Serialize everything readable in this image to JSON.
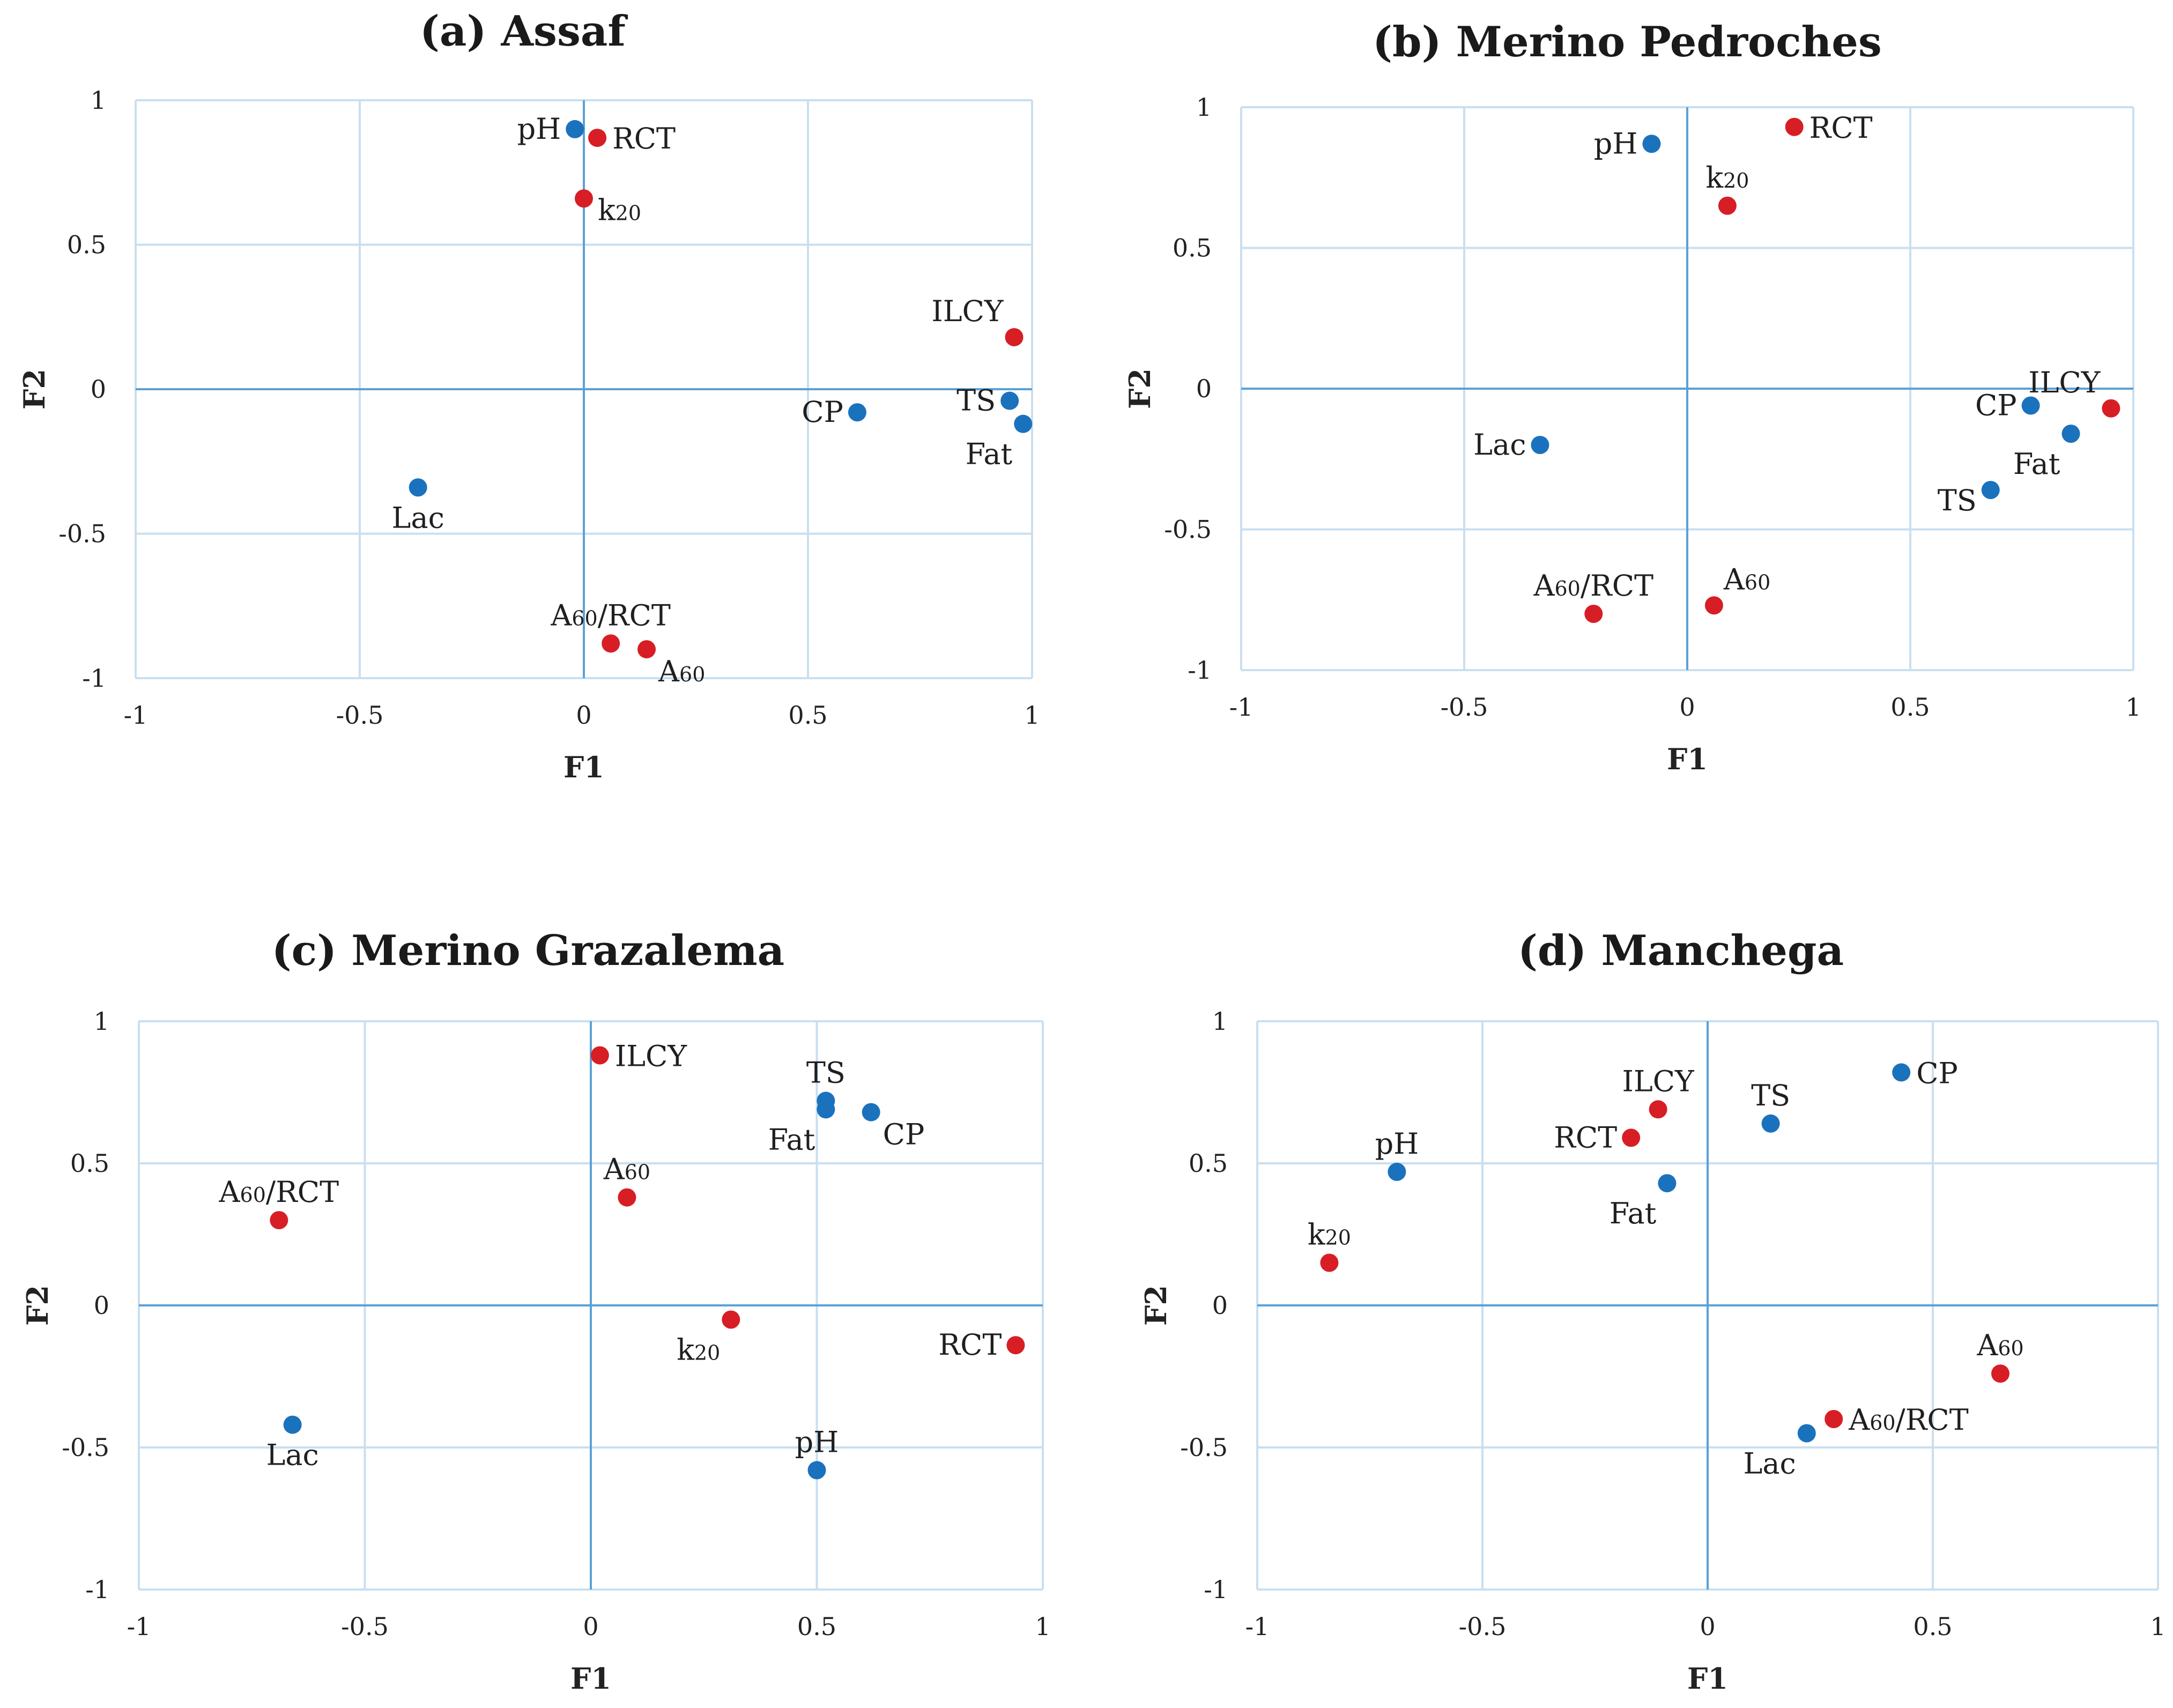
{
  "colors": {
    "fertility": "#1a72bd",
    "coagulation": "#d81e25",
    "grid": "#c9dff0",
    "axis": "#5aa1d6"
  },
  "chart_data": [
    {
      "type": "scatter",
      "title": "(a) Assaf",
      "xlabel": "F1",
      "ylabel": "F2",
      "xlim": [
        -1,
        1
      ],
      "ylim": [
        -1,
        1
      ],
      "xticks": [
        "-1",
        "-0.5",
        "0",
        "0.5",
        "1"
      ],
      "yticks": [
        "1",
        "0.5",
        "0",
        "-0.5",
        "-1"
      ],
      "points": [
        {
          "label": "pH",
          "sub": "",
          "x": -0.02,
          "y": 0.9,
          "group": "blue",
          "anchor": "left"
        },
        {
          "label": "RCT",
          "sub": "",
          "x": 0.03,
          "y": 0.87,
          "group": "red",
          "anchor": "right"
        },
        {
          "label": "k",
          "sub": "20",
          "x": 0.0,
          "y": 0.66,
          "group": "red",
          "anchor": "right-low"
        },
        {
          "label": "ILCY",
          "sub": "",
          "x": 0.96,
          "y": 0.18,
          "group": "red",
          "anchor": "above-left"
        },
        {
          "label": "TS",
          "sub": "",
          "x": 0.95,
          "y": -0.04,
          "group": "blue",
          "anchor": "left"
        },
        {
          "label": "CP",
          "sub": "",
          "x": 0.61,
          "y": -0.08,
          "group": "blue",
          "anchor": "left"
        },
        {
          "label": "Fat",
          "sub": "",
          "x": 0.98,
          "y": -0.12,
          "group": "blue",
          "anchor": "below-left"
        },
        {
          "label": "Lac",
          "sub": "",
          "x": -0.37,
          "y": -0.34,
          "group": "blue",
          "anchor": "below"
        },
        {
          "label": "A",
          "sub": "60",
          "suffix": "/RCT",
          "x": 0.06,
          "y": -0.88,
          "group": "red",
          "anchor": "above"
        },
        {
          "label": "A",
          "sub": "60",
          "x": 0.14,
          "y": -0.9,
          "group": "red",
          "anchor": "below-right"
        }
      ]
    },
    {
      "type": "scatter",
      "title": "(b) Merino Pedroches",
      "xlabel": "F1",
      "ylabel": "F2",
      "xlim": [
        -1,
        1
      ],
      "ylim": [
        -1,
        1
      ],
      "xticks": [
        "-1",
        "-0.5",
        "0",
        "0.5",
        "1"
      ],
      "yticks": [
        "1",
        "0.5",
        "0",
        "-0.5",
        "-1"
      ],
      "points": [
        {
          "label": "RCT",
          "sub": "",
          "x": 0.24,
          "y": 0.93,
          "group": "red",
          "anchor": "right"
        },
        {
          "label": "pH",
          "sub": "",
          "x": -0.08,
          "y": 0.87,
          "group": "blue",
          "anchor": "left"
        },
        {
          "label": "k",
          "sub": "20",
          "x": 0.09,
          "y": 0.65,
          "group": "red",
          "anchor": "above"
        },
        {
          "label": "ILCY",
          "sub": "",
          "x": 0.95,
          "y": -0.07,
          "group": "red",
          "anchor": "above-left"
        },
        {
          "label": "CP",
          "sub": "",
          "x": 0.77,
          "y": -0.06,
          "group": "blue",
          "anchor": "left"
        },
        {
          "label": "Fat",
          "sub": "",
          "x": 0.86,
          "y": -0.16,
          "group": "blue",
          "anchor": "below-left"
        },
        {
          "label": "TS",
          "sub": "",
          "x": 0.68,
          "y": -0.36,
          "group": "blue",
          "anchor": "left-low"
        },
        {
          "label": "Lac",
          "sub": "",
          "x": -0.33,
          "y": -0.2,
          "group": "blue",
          "anchor": "left"
        },
        {
          "label": "A",
          "sub": "60",
          "suffix": "/RCT",
          "x": -0.21,
          "y": -0.8,
          "group": "red",
          "anchor": "above"
        },
        {
          "label": "A",
          "sub": "60",
          "x": 0.06,
          "y": -0.77,
          "group": "red",
          "anchor": "above-right"
        }
      ]
    },
    {
      "type": "scatter",
      "title": "(c) Merino Grazalema",
      "xlabel": "F1",
      "ylabel": "F2",
      "xlim": [
        -1,
        1
      ],
      "ylim": [
        -1,
        1
      ],
      "xticks": [
        "-1",
        "-0.5",
        "0",
        "0.5",
        "1"
      ],
      "yticks": [
        "1",
        "0.5",
        "0",
        "-0.5",
        "-1"
      ],
      "points": [
        {
          "label": "ILCY",
          "sub": "",
          "x": 0.02,
          "y": 0.88,
          "group": "red",
          "anchor": "right"
        },
        {
          "label": "TS",
          "sub": "",
          "x": 0.52,
          "y": 0.72,
          "group": "blue",
          "anchor": "above"
        },
        {
          "label": "Fat",
          "sub": "",
          "x": 0.52,
          "y": 0.69,
          "group": "blue",
          "anchor": "below-left"
        },
        {
          "label": "CP",
          "sub": "",
          "x": 0.62,
          "y": 0.68,
          "group": "blue",
          "anchor": "below-right"
        },
        {
          "label": "A",
          "sub": "60",
          "x": 0.08,
          "y": 0.38,
          "group": "red",
          "anchor": "above"
        },
        {
          "label": "A",
          "sub": "60",
          "suffix": "/RCT",
          "x": -0.69,
          "y": 0.3,
          "group": "red",
          "anchor": "above"
        },
        {
          "label": "k",
          "sub": "20",
          "x": 0.31,
          "y": -0.05,
          "group": "red",
          "anchor": "below-left"
        },
        {
          "label": "RCT",
          "sub": "",
          "x": 0.94,
          "y": -0.14,
          "group": "red",
          "anchor": "left"
        },
        {
          "label": "Lac",
          "sub": "",
          "x": -0.66,
          "y": -0.42,
          "group": "blue",
          "anchor": "below"
        },
        {
          "label": "pH",
          "sub": "",
          "x": 0.5,
          "y": -0.58,
          "group": "blue",
          "anchor": "above"
        }
      ]
    },
    {
      "type": "scatter",
      "title": "(d) Manchega",
      "xlabel": "F1",
      "ylabel": "F2",
      "xlim": [
        -1,
        1
      ],
      "ylim": [
        -1,
        1
      ],
      "xticks": [
        "-1",
        "-0.5",
        "0",
        "0.5",
        "1"
      ],
      "yticks": [
        "1",
        "0.5",
        "0",
        "-0.5",
        "-1"
      ],
      "points": [
        {
          "label": "CP",
          "sub": "",
          "x": 0.43,
          "y": 0.82,
          "group": "blue",
          "anchor": "right"
        },
        {
          "label": "ILCY",
          "sub": "",
          "x": -0.11,
          "y": 0.69,
          "group": "red",
          "anchor": "above"
        },
        {
          "label": "TS",
          "sub": "",
          "x": 0.14,
          "y": 0.64,
          "group": "blue",
          "anchor": "above"
        },
        {
          "label": "RCT",
          "sub": "",
          "x": -0.17,
          "y": 0.59,
          "group": "red",
          "anchor": "left"
        },
        {
          "label": "pH",
          "sub": "",
          "x": -0.69,
          "y": 0.47,
          "group": "blue",
          "anchor": "above"
        },
        {
          "label": "Fat",
          "sub": "",
          "x": -0.09,
          "y": 0.43,
          "group": "blue",
          "anchor": "below-left"
        },
        {
          "label": "k",
          "sub": "20",
          "x": -0.84,
          "y": 0.15,
          "group": "red",
          "anchor": "above"
        },
        {
          "label": "A",
          "sub": "60",
          "x": 0.65,
          "y": -0.24,
          "group": "red",
          "anchor": "above"
        },
        {
          "label": "A",
          "sub": "60",
          "suffix": "/RCT",
          "x": 0.28,
          "y": -0.4,
          "group": "red",
          "anchor": "right"
        },
        {
          "label": "Lac",
          "sub": "",
          "x": 0.22,
          "y": -0.45,
          "group": "blue",
          "anchor": "below-left"
        }
      ]
    }
  ]
}
